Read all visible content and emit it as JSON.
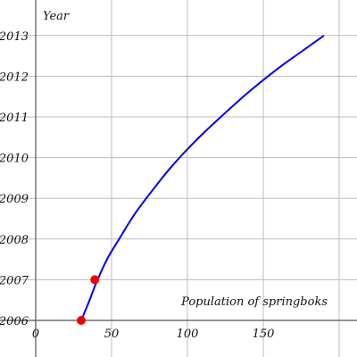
{
  "chart_data": {
    "type": "line",
    "xlabel": "Population of springboks",
    "ylabel": "Year",
    "xlim": [
      0,
      200
    ],
    "ylim": [
      2006,
      2013
    ],
    "x_ticks": [
      0,
      50,
      100,
      150
    ],
    "y_ticks": [
      2006,
      2007,
      2008,
      2009,
      2010,
      2011,
      2012,
      2013
    ],
    "x_tick_labels": [
      "0",
      "50",
      "100",
      "150"
    ],
    "y_tick_labels": [
      "2006",
      "2007",
      "2008",
      "2009",
      "2010",
      "2011",
      "2012",
      "2013"
    ],
    "grid": true,
    "series": [
      {
        "color": "#0000ee",
        "x": [
          30,
          35,
          40,
          47,
          55,
          65,
          77,
          90,
          105,
          122,
          140,
          160,
          175,
          190
        ],
        "y": [
          2006,
          2006.45,
          2006.93,
          2007.5,
          2008.0,
          2008.6,
          2009.2,
          2009.8,
          2010.4,
          2011.0,
          2011.6,
          2012.2,
          2012.6,
          2013
        ]
      }
    ],
    "points": [
      {
        "x": 30,
        "y": 2006,
        "color": "#ee0000"
      },
      {
        "x": 39,
        "y": 2007,
        "color": "#ee0000"
      }
    ]
  }
}
